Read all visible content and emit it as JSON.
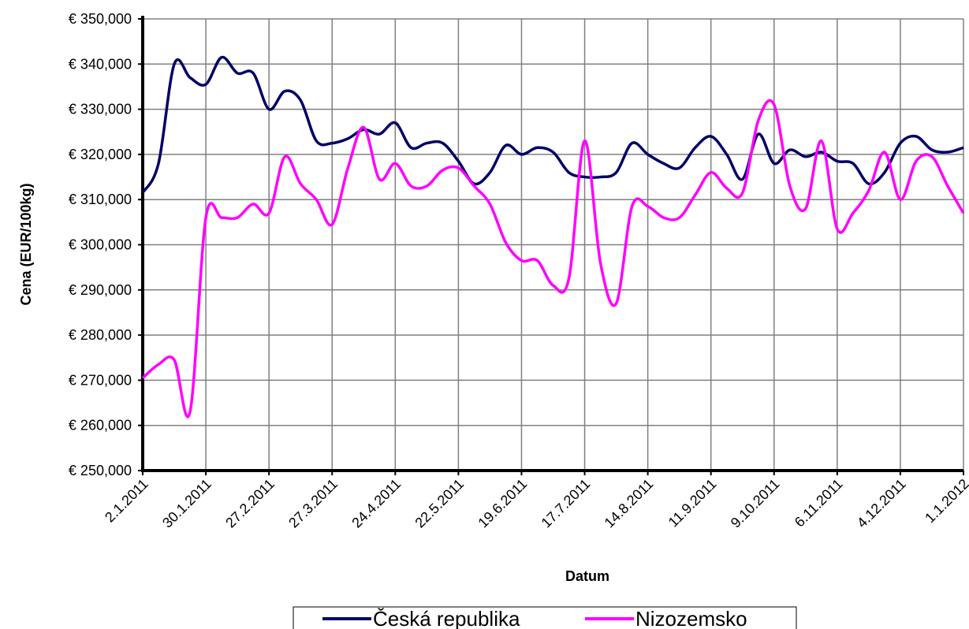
{
  "chart_data": {
    "type": "line",
    "x_label": "Datum",
    "y_label": "Cena (EUR/100kg)",
    "categories": [
      "2.1.2011",
      null,
      null,
      null,
      "30.1.2011",
      null,
      null,
      null,
      "27.2.2011",
      null,
      null,
      null,
      "27.3.2011",
      null,
      null,
      null,
      "24.4.2011",
      null,
      null,
      null,
      "22.5.2011",
      null,
      null,
      null,
      "19.6.2011",
      null,
      null,
      null,
      "17.7.2011",
      null,
      null,
      null,
      "14.8.2011",
      null,
      null,
      null,
      "11.9.2011",
      null,
      null,
      null,
      "9.10.2011",
      null,
      null,
      null,
      "6.11.2011",
      null,
      null,
      null,
      "4.12.2011",
      null,
      null,
      null,
      "1.1.2012"
    ],
    "series": [
      {
        "name": "Česká republika",
        "color": "#000066",
        "values": [
          311500,
          318000,
          340000,
          337000,
          335500,
          341500,
          338000,
          338000,
          330000,
          334000,
          332000,
          323000,
          322500,
          323500,
          325500,
          324500,
          327000,
          321500,
          322500,
          322500,
          318500,
          313500,
          316000,
          322000,
          320000,
          321500,
          320500,
          316000,
          315000,
          315000,
          316000,
          322500,
          320000,
          318000,
          317000,
          321500,
          324000,
          320000,
          314500,
          324500,
          318000,
          321000,
          319500,
          320500,
          318500,
          318000,
          313500,
          316000,
          322500,
          324000,
          321000,
          320500,
          321500
        ]
      },
      {
        "name": "Nizozemsko",
        "color": "#ff00ff",
        "values": [
          270500,
          273500,
          274500,
          263000,
          306000,
          306000,
          306000,
          309000,
          307000,
          319500,
          313500,
          310000,
          304500,
          317000,
          326000,
          314500,
          318000,
          313000,
          313000,
          316500,
          317000,
          313000,
          309000,
          300500,
          296500,
          296500,
          291000,
          292500,
          323000,
          296000,
          287000,
          308500,
          308500,
          306000,
          306000,
          311000,
          316000,
          312500,
          311500,
          327500,
          331000,
          313000,
          308000,
          323000,
          303500,
          307000,
          312000,
          320500,
          310000,
          318500,
          319500,
          313000,
          307000
        ]
      }
    ],
    "ylim": [
      250000,
      350000
    ],
    "yticks": [
      {
        "value": 250000,
        "label": "€ 250,000"
      },
      {
        "value": 260000,
        "label": "€ 260,000"
      },
      {
        "value": 270000,
        "label": "€ 270,000"
      },
      {
        "value": 280000,
        "label": "€ 280,000"
      },
      {
        "value": 290000,
        "label": "€ 290,000"
      },
      {
        "value": 300000,
        "label": "€ 300,000"
      },
      {
        "value": 310000,
        "label": "€ 310,000"
      },
      {
        "value": 320000,
        "label": "€ 320,000"
      },
      {
        "value": 330000,
        "label": "€ 330,000"
      },
      {
        "value": 340000,
        "label": "€ 340,000"
      },
      {
        "value": 350000,
        "label": "€ 350,000"
      }
    ],
    "grid": true,
    "legend": "bottom"
  }
}
